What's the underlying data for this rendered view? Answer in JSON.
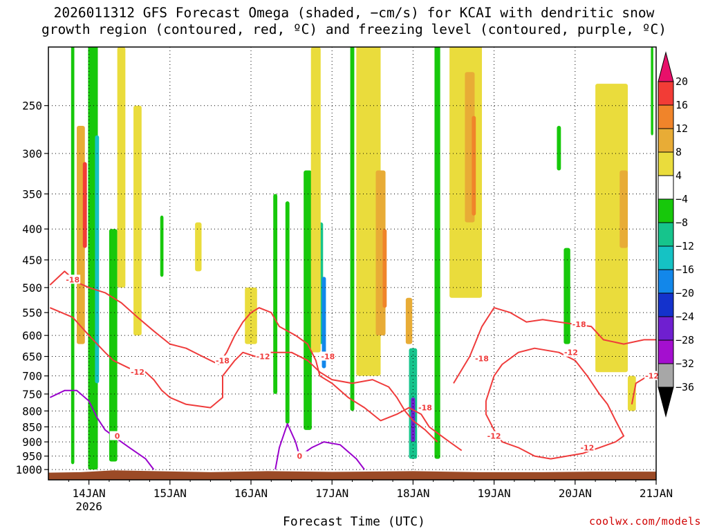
{
  "title_line1": "2026011312 GFS Forecast Omega (shaded, −cm/s) for KCAI with dendritic snow",
  "title_line2": "growth region (contoured, red, ºC) and freezing level (contoured, purple, ºC)",
  "credit": "coolwx.com/models",
  "colors": {
    "dendritic_contour": "#ef3b3b",
    "freezing_contour": "#9900cc",
    "terrain": "#9b4a26"
  },
  "chart_data": {
    "type": "heatmap",
    "xlabel": "Forecast Time (UTC)",
    "ylabel": "",
    "x_ticks": [
      {
        "label": "14JAN",
        "sub": "2026",
        "day": 14
      },
      {
        "label": "15JAN",
        "sub": "",
        "day": 15
      },
      {
        "label": "16JAN",
        "sub": "",
        "day": 16
      },
      {
        "label": "17JAN",
        "sub": "",
        "day": 17
      },
      {
        "label": "18JAN",
        "sub": "",
        "day": 18
      },
      {
        "label": "19JAN",
        "sub": "",
        "day": 19
      },
      {
        "label": "20JAN",
        "sub": "",
        "day": 20
      },
      {
        "label": "21JAN",
        "sub": "",
        "day": 21
      }
    ],
    "xlim": [
      "2026-01-13 12UTC",
      "2026-01-21 00UTC"
    ],
    "ylim_hPa": [
      1040,
      200
    ],
    "y_scale": "log-pressure",
    "y_ticks": [
      250,
      300,
      350,
      400,
      450,
      500,
      550,
      600,
      650,
      700,
      750,
      800,
      850,
      900,
      950,
      1000
    ],
    "grid": true,
    "colorbar": {
      "labels": [
        "20",
        "16",
        "12",
        "8",
        "4",
        "−4",
        "−8",
        "−12",
        "−16",
        "−20",
        "−24",
        "−28",
        "−32",
        "−36"
      ],
      "bins": [
        {
          "range": [
            20,
            24
          ],
          "color": "#e8106a"
        },
        {
          "range": [
            16,
            20
          ],
          "color": "#f23c36"
        },
        {
          "range": [
            12,
            16
          ],
          "color": "#f0842a"
        },
        {
          "range": [
            8,
            12
          ],
          "color": "#e8ac36"
        },
        {
          "range": [
            4,
            8
          ],
          "color": "#eadc3c"
        },
        {
          "range": [
            -4,
            4
          ],
          "color": "#ffffff"
        },
        {
          "range": [
            -8,
            -4
          ],
          "color": "#17c80b"
        },
        {
          "range": [
            -12,
            -8
          ],
          "color": "#16c48c"
        },
        {
          "range": [
            -16,
            -12
          ],
          "color": "#15c2c4"
        },
        {
          "range": [
            -20,
            -16
          ],
          "color": "#1287ea"
        },
        {
          "range": [
            -24,
            -20
          ],
          "color": "#1432cc"
        },
        {
          "range": [
            -28,
            -24
          ],
          "color": "#6f1fd0"
        },
        {
          "range": [
            -32,
            -28
          ],
          "color": "#a40fcf"
        },
        {
          "range": [
            -36,
            -32
          ],
          "color": "#a7a7a7"
        }
      ]
    },
    "shading": [
      {
        "day": 13.9,
        "p1": 270,
        "p2": 620,
        "w": 0.1,
        "v": 10
      },
      {
        "day": 13.95,
        "p1": 310,
        "p2": 430,
        "w": 0.05,
        "v": 18
      },
      {
        "day": 13.8,
        "p1": 150,
        "p2": 980,
        "w": 0.04,
        "v": -6
      },
      {
        "day": 14.05,
        "p1": 180,
        "p2": 1000,
        "w": 0.12,
        "v": -8
      },
      {
        "day": 14.1,
        "p1": 280,
        "p2": 720,
        "w": 0.05,
        "v": -14
      },
      {
        "day": 14.3,
        "p1": 400,
        "p2": 970,
        "w": 0.1,
        "v": -8
      },
      {
        "day": 14.4,
        "p1": 200,
        "p2": 500,
        "w": 0.1,
        "v": 5
      },
      {
        "day": 14.6,
        "p1": 250,
        "p2": 600,
        "w": 0.1,
        "v": 5
      },
      {
        "day": 14.9,
        "p1": 380,
        "p2": 480,
        "w": 0.04,
        "v": -6
      },
      {
        "day": 15.35,
        "p1": 390,
        "p2": 470,
        "w": 0.08,
        "v": 5
      },
      {
        "day": 16.0,
        "p1": 500,
        "p2": 620,
        "w": 0.15,
        "v": 5
      },
      {
        "day": 16.3,
        "p1": 350,
        "p2": 750,
        "w": 0.05,
        "v": -6
      },
      {
        "day": 16.45,
        "p1": 360,
        "p2": 840,
        "w": 0.05,
        "v": -6
      },
      {
        "day": 16.7,
        "p1": 320,
        "p2": 860,
        "w": 0.1,
        "v": -8
      },
      {
        "day": 16.85,
        "p1": 390,
        "p2": 620,
        "w": 0.08,
        "v": -12
      },
      {
        "day": 16.9,
        "p1": 480,
        "p2": 680,
        "w": 0.05,
        "v": -18
      },
      {
        "day": 16.8,
        "p1": 200,
        "p2": 640,
        "w": 0.12,
        "v": 5
      },
      {
        "day": 17.45,
        "p1": 180,
        "p2": 700,
        "w": 0.3,
        "v": 5
      },
      {
        "day": 17.6,
        "p1": 320,
        "p2": 600,
        "w": 0.12,
        "v": 10
      },
      {
        "day": 17.65,
        "p1": 400,
        "p2": 540,
        "w": 0.05,
        "v": 14
      },
      {
        "day": 17.25,
        "p1": 160,
        "p2": 800,
        "w": 0.05,
        "v": -6
      },
      {
        "day": 18.0,
        "p1": 630,
        "p2": 960,
        "w": 0.1,
        "v": -12
      },
      {
        "day": 18.0,
        "p1": 760,
        "p2": 900,
        "w": 0.05,
        "v": -26
      },
      {
        "day": 17.95,
        "p1": 520,
        "p2": 620,
        "w": 0.08,
        "v": 10
      },
      {
        "day": 18.3,
        "p1": 160,
        "p2": 960,
        "w": 0.07,
        "v": -6
      },
      {
        "day": 18.65,
        "p1": 170,
        "p2": 520,
        "w": 0.4,
        "v": 5
      },
      {
        "day": 18.7,
        "p1": 220,
        "p2": 390,
        "w": 0.12,
        "v": 10
      },
      {
        "day": 18.75,
        "p1": 260,
        "p2": 380,
        "w": 0.05,
        "v": 14
      },
      {
        "day": 19.9,
        "p1": 430,
        "p2": 620,
        "w": 0.08,
        "v": -7
      },
      {
        "day": 19.8,
        "p1": 270,
        "p2": 320,
        "w": 0.05,
        "v": -6
      },
      {
        "day": 20.45,
        "p1": 230,
        "p2": 690,
        "w": 0.4,
        "v": 5
      },
      {
        "day": 20.6,
        "p1": 320,
        "p2": 430,
        "w": 0.1,
        "v": 10
      },
      {
        "day": 20.7,
        "p1": 700,
        "p2": 800,
        "w": 0.1,
        "v": 5
      },
      {
        "day": 20.95,
        "p1": 200,
        "p2": 280,
        "w": 0.03,
        "v": -6
      }
    ],
    "contours": [
      {
        "name": "-18",
        "color": "#ef3b3b",
        "points": [
          [
            13.52,
            495
          ],
          [
            13.7,
            470
          ],
          [
            13.85,
            490
          ],
          [
            14.0,
            500
          ],
          [
            14.2,
            510
          ],
          [
            14.4,
            530
          ],
          [
            14.6,
            560
          ],
          [
            14.8,
            590
          ],
          [
            15.0,
            620
          ],
          [
            15.2,
            630
          ],
          [
            15.4,
            650
          ],
          [
            15.6,
            670
          ],
          [
            15.7,
            640
          ],
          [
            15.8,
            600
          ],
          [
            15.9,
            570
          ],
          [
            16.0,
            550
          ],
          [
            16.1,
            540
          ],
          [
            16.25,
            550
          ],
          [
            16.35,
            580
          ],
          [
            16.55,
            600
          ],
          [
            16.7,
            620
          ],
          [
            16.8,
            660
          ],
          [
            16.85,
            700
          ],
          [
            17.0,
            720
          ],
          [
            17.2,
            760
          ],
          [
            17.4,
            790
          ],
          [
            17.6,
            830
          ],
          [
            17.8,
            810
          ],
          [
            17.95,
            790
          ],
          [
            18.1,
            810
          ],
          [
            18.2,
            850
          ],
          [
            18.3,
            870
          ],
          [
            18.45,
            900
          ],
          [
            18.6,
            930
          ]
        ],
        "label_at": [
          [
            13.8,
            485
          ],
          [
            15.65,
            660
          ],
          [
            16.95,
            650
          ],
          [
            18.15,
            790
          ]
        ]
      },
      {
        "name": "-12",
        "color": "#ef3b3b",
        "points": [
          [
            13.52,
            540
          ],
          [
            13.8,
            560
          ],
          [
            14.0,
            600
          ],
          [
            14.2,
            640
          ],
          [
            14.3,
            660
          ],
          [
            14.5,
            680
          ],
          [
            14.7,
            690
          ],
          [
            14.8,
            710
          ],
          [
            14.9,
            740
          ],
          [
            15.0,
            760
          ],
          [
            15.2,
            780
          ],
          [
            15.5,
            790
          ],
          [
            15.65,
            760
          ],
          [
            15.65,
            700
          ],
          [
            15.8,
            660
          ],
          [
            15.9,
            640
          ],
          [
            16.05,
            650
          ],
          [
            16.2,
            640
          ],
          [
            16.5,
            640
          ],
          [
            16.7,
            660
          ],
          [
            16.85,
            690
          ],
          [
            17.0,
            710
          ],
          [
            17.25,
            720
          ],
          [
            17.5,
            710
          ],
          [
            17.7,
            730
          ],
          [
            17.8,
            760
          ],
          [
            17.9,
            800
          ],
          [
            18.0,
            830
          ],
          [
            18.15,
            860
          ],
          [
            18.3,
            900
          ]
        ],
        "label_at": [
          [
            14.6,
            690
          ],
          [
            16.15,
            650
          ]
        ]
      },
      {
        "name": "-18",
        "color": "#ef3b3b",
        "points": [
          [
            18.5,
            720
          ],
          [
            18.7,
            650
          ],
          [
            18.85,
            580
          ],
          [
            19.0,
            540
          ],
          [
            19.2,
            550
          ],
          [
            19.4,
            570
          ],
          [
            19.6,
            565
          ],
          [
            19.8,
            570
          ],
          [
            20.0,
            575
          ],
          [
            20.2,
            580
          ],
          [
            20.35,
            610
          ],
          [
            20.6,
            620
          ],
          [
            20.85,
            610
          ],
          [
            21.0,
            610
          ]
        ],
        "label_at": [
          [
            18.85,
            655
          ],
          [
            20.05,
            575
          ]
        ]
      },
      {
        "name": "-12",
        "color": "#ef3b3b",
        "points": [
          [
            18.9,
            770
          ],
          [
            19.0,
            700
          ],
          [
            19.1,
            670
          ],
          [
            19.3,
            640
          ],
          [
            19.5,
            630
          ],
          [
            19.8,
            640
          ],
          [
            20.0,
            660
          ],
          [
            20.15,
            700
          ],
          [
            20.3,
            750
          ],
          [
            20.4,
            780
          ],
          [
            20.5,
            830
          ],
          [
            20.6,
            880
          ],
          [
            20.5,
            900
          ],
          [
            20.3,
            920
          ],
          [
            20.1,
            940
          ],
          [
            19.9,
            950
          ],
          [
            19.7,
            960
          ],
          [
            19.5,
            950
          ],
          [
            19.3,
            920
          ],
          [
            19.1,
            900
          ],
          [
            19.0,
            860
          ],
          [
            18.9,
            810
          ],
          [
            18.9,
            770
          ]
        ],
        "label_at": [
          [
            19.95,
            640
          ],
          [
            19.0,
            880
          ],
          [
            20.15,
            920
          ]
        ]
      },
      {
        "name": "-12",
        "color": "#ef3b3b",
        "points": [
          [
            20.7,
            780
          ],
          [
            20.75,
            720
          ],
          [
            20.9,
            700
          ],
          [
            21.0,
            700
          ]
        ],
        "label_at": [
          [
            20.95,
            700
          ]
        ]
      },
      {
        "name": "0",
        "color": "#9900cc",
        "points": [
          [
            13.52,
            760
          ],
          [
            13.7,
            740
          ],
          [
            13.85,
            740
          ],
          [
            14.0,
            770
          ],
          [
            14.1,
            820
          ],
          [
            14.2,
            860
          ],
          [
            14.35,
            890
          ],
          [
            14.5,
            920
          ],
          [
            14.7,
            960
          ],
          [
            14.8,
            1000
          ]
        ],
        "label_at": [
          [
            14.35,
            880
          ]
        ]
      },
      {
        "name": "0",
        "color": "#9900cc",
        "points": [
          [
            16.3,
            1000
          ],
          [
            16.35,
            920
          ],
          [
            16.45,
            840
          ],
          [
            16.55,
            900
          ],
          [
            16.6,
            950
          ],
          [
            16.75,
            920
          ],
          [
            16.9,
            900
          ],
          [
            17.1,
            910
          ],
          [
            17.3,
            960
          ],
          [
            17.4,
            1000
          ]
        ],
        "label_at": [
          [
            16.6,
            950
          ]
        ]
      }
    ]
  }
}
